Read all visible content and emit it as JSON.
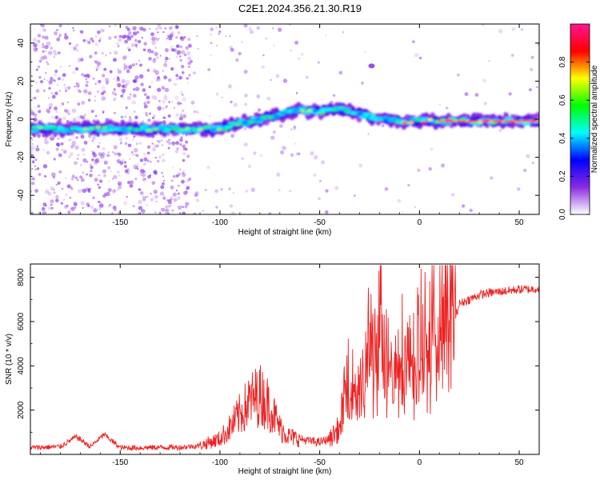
{
  "title": "C2E1.2024.356.21.30.R19",
  "chart_data": [
    {
      "type": "heatmap",
      "xlabel": "Height of straight line (km)",
      "ylabel": "Frequency (Hz)",
      "xlim": [
        -195,
        60
      ],
      "ylim": [
        -50,
        50
      ],
      "x_ticks": [
        -150,
        -100,
        -50,
        0,
        50
      ],
      "y_ticks": [
        -40,
        -20,
        0,
        20,
        40
      ],
      "colorbar": {
        "label": "Normalized spectral amplitude",
        "range": [
          0,
          1
        ],
        "ticks": [
          0.0,
          0.2,
          0.4,
          0.6,
          0.8
        ],
        "colors": [
          "#ffffff",
          "#8a2be2",
          "#0000ff",
          "#00ffff",
          "#00ff00",
          "#ffff00",
          "#ff0000",
          "#ff1493"
        ]
      },
      "ridge": {
        "x": [
          -195,
          -150,
          -120,
          -100,
          -90,
          -80,
          -70,
          -60,
          -50,
          -40,
          -30,
          -20,
          -10,
          0,
          20,
          40,
          60
        ],
        "y": [
          -5,
          -5,
          -5,
          -5,
          -2,
          0,
          2,
          5,
          4,
          6,
          3,
          0,
          -1,
          -1,
          -1,
          -1,
          -1
        ]
      }
    },
    {
      "type": "line",
      "xlabel": "Height of straight line (km)",
      "ylabel": "SNR (10 * v/v)",
      "xlim": [
        -195,
        60
      ],
      "ylim": [
        0,
        8600
      ],
      "x_ticks": [
        -150,
        -100,
        -50,
        0,
        50
      ],
      "y_ticks": [
        2000,
        4000,
        6000,
        8000
      ],
      "series": [
        {
          "color": "#ee2222",
          "x": [
            -195,
            -180,
            -172,
            -165,
            -158,
            -150,
            -140,
            -130,
            -120,
            -110,
            -100,
            -95,
            -90,
            -85,
            -80,
            -75,
            -70,
            -65,
            -60,
            -55,
            -50,
            -45,
            -40,
            -37,
            -35,
            -32,
            -30,
            -28,
            -25,
            -22,
            -20,
            -17,
            -15,
            -12,
            -10,
            -7,
            -5,
            -2,
            0,
            3,
            5,
            8,
            10,
            12,
            15,
            18,
            20,
            25,
            30,
            35,
            40,
            45,
            50,
            55,
            60
          ],
          "y": [
            300,
            350,
            800,
            350,
            900,
            300,
            300,
            320,
            320,
            400,
            700,
            1200,
            1800,
            2400,
            2700,
            2200,
            1200,
            800,
            700,
            600,
            550,
            700,
            1200,
            3000,
            3600,
            2800,
            4600,
            3000,
            5700,
            4200,
            6800,
            4500,
            5400,
            3900,
            5200,
            4500,
            4200,
            4800,
            5200,
            6000,
            5500,
            7200,
            6600,
            7800,
            6600,
            6200,
            6800,
            7000,
            7200,
            7300,
            7350,
            7400,
            7450,
            7450,
            7500
          ]
        }
      ]
    }
  ]
}
